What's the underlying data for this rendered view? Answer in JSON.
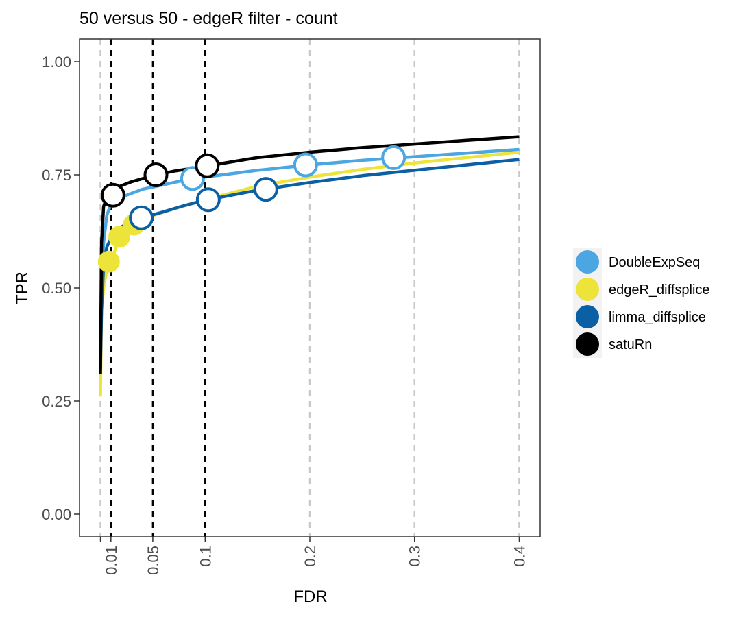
{
  "chart_data": {
    "type": "line",
    "title": "50 versus 50 - edgeR filter - count",
    "xlabel": "FDR",
    "ylabel": "TPR",
    "xlim": [
      -0.02,
      0.42
    ],
    "ylim": [
      -0.05,
      1.05
    ],
    "x_ticks": [
      0.01,
      0.05,
      0.1,
      0.2,
      0.3,
      0.4
    ],
    "x_tick_labels": [
      "0.01",
      "0.05",
      "0.1",
      "0.2",
      "0.3",
      "0.4"
    ],
    "y_ticks": [
      0,
      0.25,
      0.5,
      0.75,
      1
    ],
    "y_tick_labels": [
      "0.00",
      "0.25",
      "0.50",
      "0.75",
      "1.00"
    ],
    "threshold_lines": [
      0.01,
      0.05,
      0.1
    ],
    "grid": "vertical dashed grey at x ticks",
    "legend_position": "right",
    "series": [
      {
        "name": "DoubleExpSeq",
        "color": "#4ba6e1",
        "x": [
          0.0,
          0.001,
          0.003,
          0.006,
          0.01,
          0.015,
          0.025,
          0.04,
          0.06,
          0.08,
          0.1,
          0.15,
          0.2,
          0.25,
          0.3,
          0.35,
          0.4
        ],
        "y": [
          0.34,
          0.5,
          0.6,
          0.66,
          0.685,
          0.695,
          0.705,
          0.718,
          0.728,
          0.738,
          0.745,
          0.76,
          0.772,
          0.782,
          0.79,
          0.798,
          0.806
        ],
        "points": [
          {
            "x": 0.088,
            "y": 0.742,
            "filled": false
          },
          {
            "x": 0.196,
            "y": 0.772,
            "filled": false
          },
          {
            "x": 0.28,
            "y": 0.788,
            "filled": false
          }
        ]
      },
      {
        "name": "edgeR_diffsplice",
        "color": "#ede43a",
        "x": [
          0.0,
          0.001,
          0.003,
          0.006,
          0.01,
          0.015,
          0.02,
          0.03,
          0.05,
          0.07,
          0.1,
          0.15,
          0.2,
          0.25,
          0.3,
          0.35,
          0.4
        ],
        "y": [
          0.26,
          0.45,
          0.5,
          0.54,
          0.56,
          0.59,
          0.615,
          0.64,
          0.66,
          0.675,
          0.695,
          0.725,
          0.745,
          0.762,
          0.776,
          0.788,
          0.8
        ],
        "points": [
          {
            "x": 0.008,
            "y": 0.558,
            "filled": true
          },
          {
            "x": 0.018,
            "y": 0.613,
            "filled": true
          },
          {
            "x": 0.032,
            "y": 0.64,
            "filled": true
          }
        ]
      },
      {
        "name": "limma_diffsplice",
        "color": "#0b5fa5",
        "x": [
          0.0,
          0.001,
          0.003,
          0.006,
          0.01,
          0.015,
          0.02,
          0.03,
          0.04,
          0.06,
          0.08,
          0.1,
          0.15,
          0.2,
          0.25,
          0.3,
          0.35,
          0.4
        ],
        "y": [
          0.32,
          0.45,
          0.55,
          0.59,
          0.61,
          0.625,
          0.635,
          0.648,
          0.655,
          0.668,
          0.682,
          0.694,
          0.716,
          0.733,
          0.748,
          0.76,
          0.772,
          0.784
        ],
        "points": [
          {
            "x": 0.039,
            "y": 0.655,
            "filled": false
          },
          {
            "x": 0.103,
            "y": 0.695,
            "filled": false
          },
          {
            "x": 0.158,
            "y": 0.718,
            "filled": false
          }
        ]
      },
      {
        "name": "satuRn",
        "color": "#000000",
        "x": [
          0.0,
          0.001,
          0.003,
          0.006,
          0.01,
          0.015,
          0.02,
          0.03,
          0.05,
          0.07,
          0.1,
          0.15,
          0.2,
          0.25,
          0.3,
          0.35,
          0.4
        ],
        "y": [
          0.31,
          0.6,
          0.68,
          0.7,
          0.71,
          0.72,
          0.726,
          0.735,
          0.748,
          0.758,
          0.769,
          0.788,
          0.8,
          0.81,
          0.818,
          0.826,
          0.834
        ],
        "points": [
          {
            "x": 0.012,
            "y": 0.705,
            "filled": false
          },
          {
            "x": 0.053,
            "y": 0.75,
            "filled": false
          },
          {
            "x": 0.102,
            "y": 0.77,
            "filled": false
          }
        ]
      }
    ]
  }
}
